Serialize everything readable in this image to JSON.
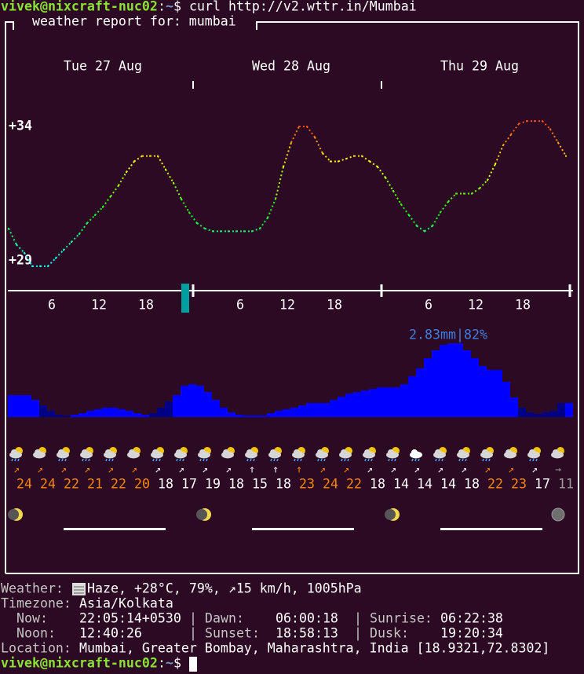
{
  "prompt": {
    "user": "vivek@nixcraft-nuc02",
    "sep": ":",
    "path": "~",
    "symbol": "$",
    "command": "curl http://v2.wttr.in/Mumbai"
  },
  "report_title": "weather report for: mumbai",
  "chart_data": [
    {
      "type": "line",
      "days": [
        "Tue 27 Aug",
        "Wed 28 Aug",
        "Thu 29 Aug"
      ],
      "xticks": [
        6,
        12,
        18
      ],
      "ylim": [
        29,
        34
      ],
      "yticks": [
        {
          "value": 34,
          "label": "+34"
        },
        {
          "value": 29,
          "label": "+29"
        }
      ],
      "values": [
        30.2,
        29.6,
        29.3,
        28.8,
        28.8,
        28.8,
        29.1,
        29.4,
        29.7,
        30.0,
        30.4,
        30.7,
        31.0,
        31.4,
        31.8,
        32.3,
        32.7,
        32.9,
        32.9,
        32.9,
        32.4,
        31.9,
        31.3,
        30.8,
        30.4,
        30.2,
        30.1,
        30.1,
        30.1,
        30.1,
        30.1,
        30.1,
        30.2,
        30.6,
        31.3,
        32.5,
        33.4,
        34.0,
        34.0,
        33.6,
        33.0,
        32.7,
        32.7,
        32.8,
        32.9,
        32.9,
        32.7,
        32.5,
        32.1,
        31.6,
        31.1,
        30.7,
        30.3,
        30.1,
        30.3,
        30.8,
        31.2,
        31.5,
        31.5,
        31.5,
        31.7,
        32.0,
        32.6,
        33.3,
        33.7,
        34.1,
        34.2,
        34.2,
        34.2,
        33.9,
        33.4,
        32.9
      ]
    },
    {
      "type": "bar",
      "ylim": [
        0,
        2.83
      ],
      "max_label": "2.83mm|82%",
      "values": [
        0.84,
        0.84,
        0.84,
        0.66,
        0.45,
        0.24,
        0.09,
        0.06,
        0.09,
        0.15,
        0.24,
        0.3,
        0.36,
        0.36,
        0.3,
        0.24,
        0.15,
        0.09,
        0.15,
        0.36,
        0.6,
        0.84,
        1.2,
        1.26,
        1.2,
        0.96,
        0.66,
        0.36,
        0.18,
        0.09,
        0.06,
        0.06,
        0.06,
        0.15,
        0.24,
        0.3,
        0.36,
        0.45,
        0.54,
        0.54,
        0.54,
        0.66,
        0.78,
        0.9,
        0.96,
        1.02,
        1.08,
        1.14,
        1.14,
        1.14,
        1.26,
        1.57,
        1.87,
        2.26,
        2.56,
        2.77,
        2.83,
        2.83,
        2.56,
        2.26,
        1.96,
        1.81,
        1.81,
        1.35,
        0.75,
        0.36,
        0.18,
        0.12,
        0.18,
        0.24,
        0.54,
        0.54
      ],
      "colors": [
        "#0000ff",
        "#0000ff",
        "#0000ff",
        "#0000ff",
        "#000087",
        "#000087",
        "#000087",
        "#000087",
        "#0000ff",
        "#0000ff",
        "#0000ff",
        "#0000ff",
        "#0000ff",
        "#0000ff",
        "#0000ff",
        "#0000ff",
        "#0000ff",
        "#0000ff",
        "#000087",
        "#000087",
        "#000087",
        "#0000ff",
        "#0000ff",
        "#0000ff",
        "#0000ff",
        "#0000ff",
        "#0000ff",
        "#0000ff",
        "#0000ff",
        "#0000ff",
        "#0000ff",
        "#0000ff",
        "#0000ff",
        "#0000ff",
        "#0000ff",
        "#0000ff",
        "#0000ff",
        "#0000ff",
        "#0000ff",
        "#0000ff",
        "#0000ff",
        "#0000ff",
        "#0000ff",
        "#0000ff",
        "#0000ff",
        "#0000ff",
        "#0000ff",
        "#0000ff",
        "#0000ff",
        "#0000ff",
        "#0000ff",
        "#0000ff",
        "#0000ff",
        "#0000ff",
        "#0000ff",
        "#0000ff",
        "#0000ff",
        "#0000ff",
        "#0000ff",
        "#0000ff",
        "#0000ff",
        "#0000ff",
        "#0000ff",
        "#0000ff",
        "#0000ff",
        "#000087",
        "#000087",
        "#000087",
        "#000087",
        "#000087",
        "#000087",
        "#0000ff"
      ]
    }
  ],
  "forecast": {
    "wind_dirs": [
      "↗",
      "↗",
      "↗",
      "↗",
      "↗",
      "↗",
      "↗",
      "↗",
      "↗",
      "↗",
      "↑",
      "↑",
      "↑",
      "↗",
      "↗",
      "↗",
      "↗",
      "↗",
      "↗",
      "↗",
      "↗",
      "↗",
      "↗",
      "→"
    ],
    "wind_speeds": [
      24,
      24,
      22,
      21,
      22,
      20,
      18,
      17,
      19,
      18,
      15,
      18,
      23,
      24,
      22,
      18,
      14,
      14,
      14,
      18,
      22,
      23,
      17,
      11
    ],
    "wind_colors": [
      "#ff8700",
      "#ff8700",
      "#ff8700",
      "#ff8700",
      "#ff8700",
      "#ff8700",
      "#ffffff",
      "#ffffff",
      "#ffffff",
      "#ffffff",
      "#ffffff",
      "#ffffff",
      "#ff8700",
      "#ff8700",
      "#ff8700",
      "#ffffff",
      "#ffffff",
      "#ffffff",
      "#ffffff",
      "#ffffff",
      "#ff8700",
      "#ff8700",
      "#ffffff",
      "#9e9e9e"
    ]
  },
  "info": {
    "weather_label": "Weather:",
    "weather": "Haze, +28°C, 79%, ↗15 km/h, 1005hPa",
    "timezone_label": "Timezone:",
    "timezone": "Asia/Kolkata",
    "now_label": "Now:",
    "now": "22:05:14+0530",
    "dawn_label": "Dawn:",
    "dawn": "06:00:18",
    "sunrise_label": "Sunrise:",
    "sunrise": "06:22:38",
    "noon_label": "Noon:",
    "noon": "12:40:26",
    "sunset_label": "Sunset:",
    "sunset": "18:58:13",
    "dusk_label": "Dusk:",
    "dusk": "19:20:34",
    "separator": "|",
    "location_label": "Location:",
    "location": "Mumbai, Greater Bombay, Maharashtra, India [18.9321,72.8302]"
  }
}
